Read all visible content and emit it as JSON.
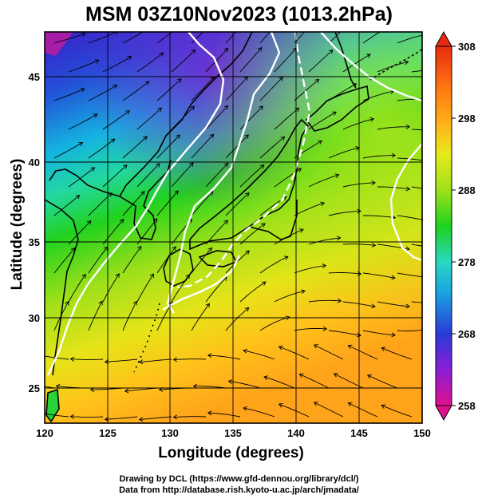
{
  "title": "MSM 03Z10Nov2023 (1013.2hPa)",
  "axes": {
    "xlabel": "Longitude (degrees)",
    "ylabel": "Latitude  (degrees)",
    "xticks": [
      "120",
      "125",
      "130",
      "135",
      "140",
      "145",
      "150"
    ],
    "yticks": [
      "25",
      "30",
      "35",
      "40",
      "45"
    ],
    "xlim": [
      120,
      150
    ],
    "ylim": [
      22.4,
      47.6
    ]
  },
  "colorbar": {
    "ticks": [
      "308",
      "298",
      "288",
      "278",
      "268",
      "258"
    ],
    "range": [
      258,
      308
    ],
    "colors": [
      "#e0108c",
      "#8a1ed6",
      "#2a3ad8",
      "#1aa8e0",
      "#2ad8c0",
      "#1ed21e",
      "#9fe01a",
      "#e6ea1a",
      "#ffb41a",
      "#ff7a10",
      "#e82a10"
    ]
  },
  "credits": {
    "line1": "Drawing by DCL (https://www.gfd-dennou.org/library/dcl/)",
    "line2": "Data from http://database.rish.kyoto-u.ac.jp/arch/jmadata/"
  }
}
